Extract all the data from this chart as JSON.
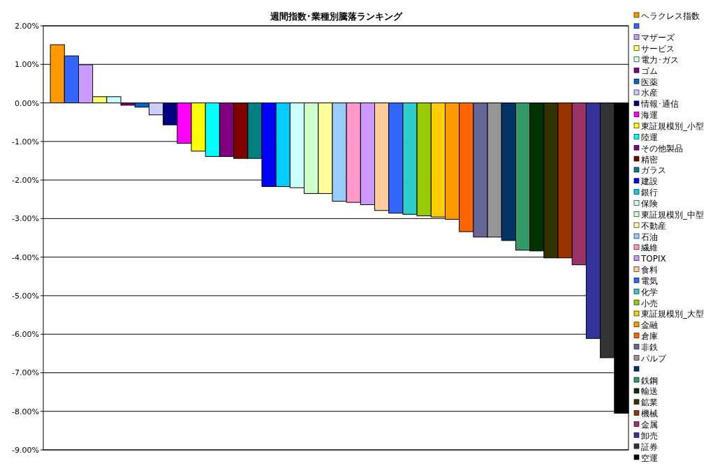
{
  "chart_data": {
    "type": "bar",
    "title": "週間指数･業種別騰落ランキング",
    "categories": [
      null
    ],
    "series": [
      {
        "name": "ヘラクレス指数",
        "color": "#ff9900",
        "values": [
          1.51
        ]
      },
      {
        "color": "#3366ff",
        "values": [
          1.22
        ]
      },
      {
        "name": "マザーズ",
        "color": "#cc99ff",
        "values": [
          0.99
        ]
      },
      {
        "name": "サービス",
        "color": "#ffff66",
        "values": [
          0.16
        ]
      },
      {
        "name": "電力･ガス",
        "color": "#ccffff",
        "values": [
          0.16
        ]
      },
      {
        "name": "ゴム",
        "color": "#800080",
        "values": [
          -0.06
        ]
      },
      {
        "name": "医薬",
        "color": "#0066cc",
        "values": [
          -0.11
        ]
      },
      {
        "name": "水産",
        "color": "#ccccff",
        "values": [
          -0.31
        ]
      },
      {
        "name": "情報･通信",
        "color": "#000080",
        "values": [
          -0.57
        ]
      },
      {
        "name": "海運",
        "color": "#ff00ff",
        "values": [
          -1.05
        ]
      },
      {
        "name": "東証規模別_小型",
        "color": "#ffff00",
        "values": [
          -1.25
        ]
      },
      {
        "name": "陸運",
        "color": "#00ffff",
        "values": [
          -1.39
        ]
      },
      {
        "name": "その他製品",
        "color": "#800080",
        "values": [
          -1.39
        ]
      },
      {
        "name": "精密",
        "color": "#800000",
        "values": [
          -1.44
        ]
      },
      {
        "name": "ガラス",
        "color": "#008080",
        "values": [
          -1.44
        ]
      },
      {
        "name": "建設",
        "color": "#0000ff",
        "values": [
          -2.17
        ]
      },
      {
        "name": "銀行",
        "color": "#00ccff",
        "values": [
          -2.17
        ]
      },
      {
        "name": "保険",
        "color": "#ccffff",
        "values": [
          -2.2
        ]
      },
      {
        "name": "東証規模別_中型",
        "color": "#ccffcc",
        "values": [
          -2.35
        ]
      },
      {
        "name": "不動産",
        "color": "#ffff99",
        "values": [
          -2.35
        ]
      },
      {
        "name": "石油",
        "color": "#99ccff",
        "values": [
          -2.55
        ]
      },
      {
        "name": "繊維",
        "color": "#ff99cc",
        "values": [
          -2.58
        ]
      },
      {
        "name": "TOPIX",
        "color": "#cc99ff",
        "values": [
          -2.64
        ]
      },
      {
        "name": "食料",
        "color": "#ffcc99",
        "values": [
          -2.79
        ]
      },
      {
        "name": "電気",
        "color": "#3366ff",
        "values": [
          -2.86
        ]
      },
      {
        "name": "化学",
        "color": "#33cccc",
        "values": [
          -2.89
        ]
      },
      {
        "name": "小売",
        "color": "#99cc00",
        "values": [
          -2.93
        ]
      },
      {
        "name": "東証規模別_大型",
        "color": "#ffcc00",
        "values": [
          -2.96
        ]
      },
      {
        "name": "金融",
        "color": "#ff9900",
        "values": [
          -3.02
        ]
      },
      {
        "name": "倉庫",
        "color": "#ff6600",
        "values": [
          -3.34
        ]
      },
      {
        "name": "非鉄",
        "color": "#666699",
        "values": [
          -3.48
        ]
      },
      {
        "name": "パルプ",
        "color": "#969696",
        "values": [
          -3.48
        ]
      },
      {
        "color": "#003366",
        "values": [
          -3.57
        ]
      },
      {
        "name": "鉄鋼",
        "color": "#339966",
        "values": [
          -3.82
        ]
      },
      {
        "name": "輸送",
        "color": "#003300",
        "values": [
          -3.84
        ]
      },
      {
        "name": "鉱業",
        "color": "#333300",
        "values": [
          -4.02
        ]
      },
      {
        "name": "機械",
        "color": "#993300",
        "values": [
          -4.02
        ]
      },
      {
        "name": "金属",
        "color": "#993366",
        "values": [
          -4.2
        ]
      },
      {
        "name": "卸売",
        "color": "#333399",
        "values": [
          -6.11
        ]
      },
      {
        "name": "証券",
        "color": "#333333",
        "values": [
          -6.61
        ]
      },
      {
        "name": "空運",
        "color": "#000000",
        "values": [
          -8.05
        ]
      }
    ],
    "ylim": [
      -9,
      2
    ],
    "yticks": [
      {
        "value": 2,
        "label": "2.00%"
      },
      {
        "value": 1,
        "label": "1.00%"
      },
      {
        "value": 0,
        "label": "0.00%"
      },
      {
        "value": -1,
        "label": "-1.00%"
      },
      {
        "value": -2,
        "label": "-2.00%"
      },
      {
        "value": -3,
        "label": "-3.00%"
      },
      {
        "value": -4,
        "label": "-4.00%"
      },
      {
        "value": -5,
        "label": "-5.00%"
      },
      {
        "value": -6,
        "label": "-6.00%"
      },
      {
        "value": -7,
        "label": "-7.00%"
      },
      {
        "value": -8,
        "label": "-8.00%"
      },
      {
        "value": -9,
        "label": "-9.00%"
      }
    ],
    "grid": "y",
    "legend": "right"
  }
}
